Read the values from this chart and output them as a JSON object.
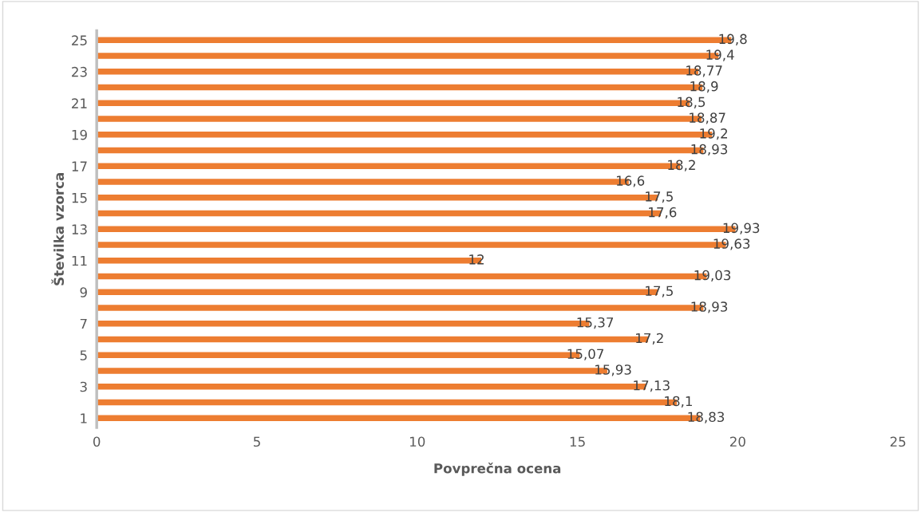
{
  "chart_data": {
    "type": "bar",
    "orientation": "horizontal",
    "xlabel": "Povprečna ocena",
    "ylabel": "Številka vzorca",
    "categories": [
      "25",
      null,
      "23",
      null,
      "21",
      null,
      "19",
      null,
      "17",
      null,
      "15",
      null,
      "13",
      null,
      "11",
      null,
      "9",
      null,
      "7",
      null,
      "5",
      null,
      "3",
      null,
      "1"
    ],
    "values": [
      19.8,
      19.4,
      18.77,
      18.9,
      18.5,
      18.87,
      19.2,
      18.93,
      18.2,
      16.6,
      17.5,
      17.6,
      19.93,
      19.63,
      12,
      19.03,
      17.5,
      18.93,
      15.37,
      17.2,
      15.07,
      15.93,
      17.13,
      18.1,
      18.83
    ],
    "value_labels": [
      "19,8",
      "19,4",
      "18,77",
      "18,9",
      "18,5",
      "18,87",
      "19,2",
      "18,93",
      "18,2",
      "16,6",
      "17,5",
      "17,6",
      "19,93",
      "19,63",
      "12",
      "19,03",
      "17,5",
      "18,93",
      "15,37",
      "17,2",
      "15,07",
      "15,93",
      "17,13",
      "18,1",
      "18,83"
    ],
    "color": "#ed7d31",
    "xlim": [
      0,
      25
    ],
    "xticks": [
      0,
      5,
      10,
      15,
      20,
      25
    ],
    "grid": false,
    "legend": false
  }
}
